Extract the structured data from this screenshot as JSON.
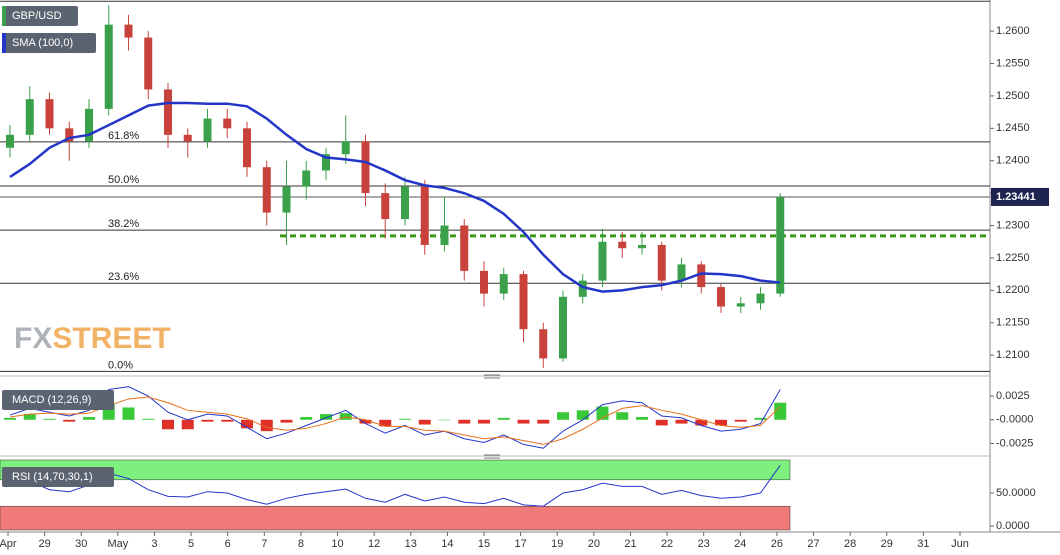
{
  "chart_data": [
    {
      "type": "candlestick",
      "title": "GBP/USD",
      "up_color": "#3aa04a",
      "down_color": "#c8413a",
      "open": [
        1.242,
        1.244,
        1.2495,
        1.245,
        1.243,
        1.248,
        1.261,
        1.259,
        1.251,
        1.244,
        1.243,
        1.2465,
        1.245,
        1.239,
        1.232,
        1.236,
        1.2385,
        1.241,
        1.243,
        1.235,
        1.231,
        1.236,
        1.227,
        1.23,
        1.223,
        1.2195,
        1.2225,
        1.214,
        1.2095,
        1.219,
        1.2215,
        1.2275,
        1.2265,
        1.227,
        1.2215,
        1.224,
        1.2205,
        1.2175,
        1.218,
        1.2195
      ],
      "high": [
        1.2455,
        1.2515,
        1.2505,
        1.246,
        1.2495,
        1.264,
        1.2625,
        1.26,
        1.252,
        1.245,
        1.248,
        1.248,
        1.246,
        1.24,
        1.24,
        1.24,
        1.242,
        1.247,
        1.244,
        1.2365,
        1.2375,
        1.237,
        1.2345,
        1.231,
        1.2245,
        1.2235,
        1.223,
        1.215,
        1.22,
        1.2225,
        1.2295,
        1.229,
        1.229,
        1.2275,
        1.225,
        1.2245,
        1.221,
        1.219,
        1.2205,
        1.235
      ],
      "low": [
        1.2405,
        1.243,
        1.244,
        1.24,
        1.242,
        1.247,
        1.257,
        1.2495,
        1.242,
        1.2405,
        1.242,
        1.2435,
        1.2375,
        1.23,
        1.227,
        1.234,
        1.237,
        1.2395,
        1.233,
        1.228,
        1.23,
        1.2255,
        1.226,
        1.2215,
        1.2175,
        1.2185,
        1.212,
        1.208,
        1.209,
        1.218,
        1.2205,
        1.225,
        1.2255,
        1.22,
        1.2205,
        1.2195,
        1.2165,
        1.2165,
        1.217,
        1.219
      ],
      "close": [
        1.244,
        1.2495,
        1.245,
        1.243,
        1.248,
        1.261,
        1.259,
        1.251,
        1.244,
        1.243,
        1.2465,
        1.245,
        1.239,
        1.232,
        1.236,
        1.2385,
        1.241,
        1.243,
        1.235,
        1.231,
        1.236,
        1.227,
        1.23,
        1.223,
        1.2195,
        1.2225,
        1.214,
        1.2095,
        1.219,
        1.2215,
        1.2275,
        1.2265,
        1.227,
        1.2215,
        1.224,
        1.2205,
        1.2175,
        1.218,
        1.2195,
        1.2344
      ],
      "series": [
        {
          "name": "SMA (100,0)",
          "color": "#2436c8",
          "values": [
            1.2375,
            1.2395,
            1.242,
            1.2435,
            1.244,
            1.2455,
            1.247,
            1.2485,
            1.2489,
            1.2489,
            1.2488,
            1.2488,
            1.2484,
            1.2465,
            1.244,
            1.2418,
            1.2405,
            1.2402,
            1.2398,
            1.2385,
            1.237,
            1.2362,
            1.2358,
            1.235,
            1.2338,
            1.2318,
            1.229,
            1.2255,
            1.2225,
            1.2205,
            1.2198,
            1.22,
            1.2205,
            1.2208,
            1.2215,
            1.2226,
            1.2225,
            1.2222,
            1.2215,
            1.2212
          ]
        }
      ],
      "ylim": [
        1.2074,
        1.2648
      ],
      "yticks": [
        {
          "value": 1.21,
          "label": "1.2100"
        },
        {
          "value": 1.215,
          "label": "1.2150"
        },
        {
          "value": 1.22,
          "label": "1.2200"
        },
        {
          "value": 1.225,
          "label": "1.2250"
        },
        {
          "value": 1.23,
          "label": "1.2300"
        },
        {
          "value": 1.235,
          "label": "1.2350"
        },
        {
          "value": 1.24,
          "label": "1.2400"
        },
        {
          "value": 1.245,
          "label": "1.2450"
        },
        {
          "value": 1.25,
          "label": "1.2500"
        },
        {
          "value": 1.255,
          "label": "1.2550"
        },
        {
          "value": 1.26,
          "label": "1.2600"
        }
      ],
      "range_high": 1.2646,
      "fib_levels": [
        {
          "label": "61.8%",
          "value": 1.2429
        },
        {
          "label": "50.0%",
          "value": 1.2361
        },
        {
          "label": "38.2%",
          "value": 1.2293
        },
        {
          "label": "23.6%",
          "value": 1.2211
        },
        {
          "label": "0.0%",
          "value": 1.2075
        }
      ],
      "support_level": 1.2284,
      "support_color": "#3a9a1a",
      "last_price": 1.23441,
      "watermark": [
        "FX",
        "STREET"
      ]
    },
    {
      "type": "macd",
      "title": "MACD (12,26,9)",
      "series": [
        {
          "color": "#2436c8",
          "values": [
            0.0005,
            0.0012,
            0.0008,
            0.0004,
            0.001,
            0.0032,
            0.0035,
            0.0025,
            0.0008,
            0.0,
            0.0006,
            0.0004,
            -0.0008,
            -0.002,
            -0.0014,
            -0.0006,
            0.0002,
            0.001,
            -0.0004,
            -0.0014,
            -0.0006,
            -0.0016,
            -0.0012,
            -0.002,
            -0.0024,
            -0.0016,
            -0.0026,
            -0.003,
            -0.0012,
            0.0,
            0.0016,
            0.002,
            0.0018,
            0.0004,
            0.0002,
            -0.0006,
            -0.0012,
            -0.001,
            -0.0004,
            0.0032
          ]
        },
        {
          "color": "#e8701a",
          "values": [
            0.0003,
            0.0006,
            0.0007,
            0.0006,
            0.0007,
            0.0015,
            0.0022,
            0.0024,
            0.0018,
            0.001,
            0.0008,
            0.0006,
            0.0001,
            -0.0008,
            -0.0011,
            -0.0009,
            -0.0004,
            0.0003,
            0.0,
            -0.0007,
            -0.0007,
            -0.0011,
            -0.0012,
            -0.0016,
            -0.002,
            -0.0018,
            -0.0022,
            -0.0026,
            -0.002,
            -0.001,
            0.0002,
            0.0012,
            0.0015,
            0.001,
            0.0006,
            0.0,
            -0.0006,
            -0.0008,
            -0.0006,
            0.0014
          ]
        }
      ],
      "histogram": {
        "up_color": "#38c838",
        "down_color": "#e0302a",
        "values": [
          0.0002,
          0.0006,
          0.0001,
          -0.0002,
          0.0003,
          0.0017,
          0.0013,
          0.0001,
          -0.001,
          -0.001,
          -0.0002,
          -0.0002,
          -0.0009,
          -0.0012,
          -0.0003,
          0.0003,
          0.0006,
          0.0007,
          -0.0004,
          -0.0007,
          0.0001,
          -0.0005,
          0.0,
          -0.0004,
          -0.0004,
          0.0002,
          -0.0004,
          -0.0004,
          0.0008,
          0.001,
          0.0014,
          0.0008,
          0.0003,
          -0.0006,
          -0.0004,
          -0.0006,
          -0.0006,
          -0.0002,
          0.0002,
          0.0018
        ]
      },
      "ylim": [
        -0.0034,
        0.0042
      ],
      "yticks": [
        0.0025,
        {
          "value": 0,
          "label": "-0.0000"
        },
        -0.0025
      ]
    },
    {
      "type": "rsi",
      "title": "RSI (14,70,30,1)",
      "color": "#2436c8",
      "values": [
        60,
        68,
        55,
        52,
        62,
        80,
        72,
        55,
        45,
        44,
        52,
        50,
        40,
        33,
        42,
        48,
        52,
        56,
        42,
        36,
        48,
        38,
        44,
        36,
        34,
        42,
        32,
        30,
        50,
        55,
        65,
        60,
        60,
        48,
        54,
        46,
        42,
        44,
        50,
        92
      ],
      "overbought": 70,
      "oversold": 30,
      "overbought_color": "#7ef07e",
      "oversold_color": "#f07a7a",
      "ylim": [
        -6,
        100
      ],
      "yticks": [
        {
          "value": 50,
          "label": "50.0000"
        },
        {
          "value": 0,
          "label": "0.0000"
        }
      ],
      "x_labels": [
        "Apr",
        "29",
        "30",
        "May",
        "3",
        "5",
        "6",
        "7",
        "8",
        "10",
        "12",
        "13",
        "14",
        "15",
        "17",
        "19",
        "20",
        "21",
        "22",
        "23",
        "24",
        "26",
        "27",
        "28",
        "29",
        "31",
        "Jun"
      ]
    }
  ]
}
